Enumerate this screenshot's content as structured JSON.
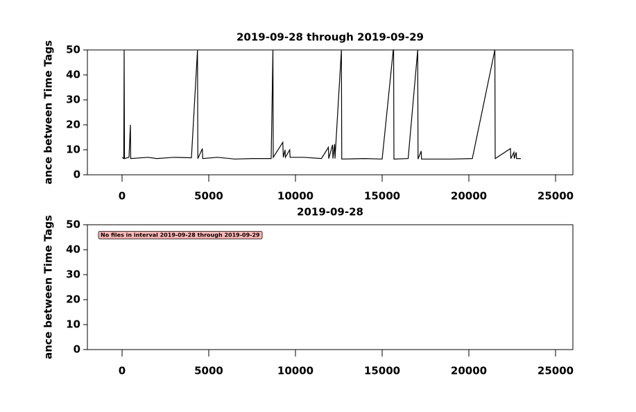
{
  "chart_data": [
    {
      "type": "line",
      "title": "2019-09-28 through 2019-09-29",
      "ylabel": "ance between Time Tags",
      "xlim": [
        -2000,
        26000
      ],
      "ylim": [
        0,
        50
      ],
      "xticks": [
        0,
        5000,
        10000,
        15000,
        20000,
        25000
      ],
      "yticks": [
        0,
        10,
        20,
        30,
        40,
        50
      ],
      "color": "#000000",
      "x": [
        0,
        100,
        120,
        140,
        400,
        480,
        500,
        1500,
        2000,
        3000,
        4000,
        4350,
        4370,
        4630,
        4650,
        5500,
        6500,
        7500,
        8600,
        8700,
        8720,
        9270,
        9300,
        9400,
        9420,
        9670,
        9690,
        10500,
        11500,
        11900,
        11920,
        12140,
        12160,
        12260,
        12280,
        12650,
        12670,
        14000,
        15000,
        15640,
        15660,
        15680,
        16500,
        17050,
        17070,
        17250,
        17270,
        19000,
        20200,
        21500,
        21520,
        22400,
        22420,
        22600,
        22620,
        22730,
        22750,
        23000
      ],
      "values": [
        7,
        6.5,
        50,
        6.5,
        7,
        20,
        6.5,
        7,
        6.5,
        7,
        6.8,
        50,
        6.5,
        10.5,
        6.5,
        7,
        6.3,
        6.5,
        6.5,
        50,
        7,
        13,
        7,
        10,
        7,
        10,
        7,
        7,
        6.5,
        11,
        6.5,
        12,
        6.5,
        12.3,
        6.5,
        50,
        6.3,
        6.5,
        6.3,
        50,
        50,
        6.3,
        6.5,
        50,
        6.3,
        9.5,
        6.3,
        6.3,
        6.5,
        50,
        6.5,
        10.5,
        6.5,
        9,
        6.5,
        9,
        6.5,
        6.5
      ]
    },
    {
      "type": "line",
      "title": "2019-09-28",
      "ylabel": "ance between Time Tags",
      "xlim": [
        -2000,
        26000
      ],
      "ylim": [
        0,
        50
      ],
      "xticks": [
        0,
        5000,
        10000,
        15000,
        20000,
        25000
      ],
      "yticks": [
        0,
        10,
        20,
        30,
        40,
        50
      ],
      "color": "#000000",
      "x": [],
      "values": [],
      "annotation": "No files in interval 2019-09-28 through 2019-09-29",
      "annotation_color": "#ffb6b6"
    }
  ]
}
